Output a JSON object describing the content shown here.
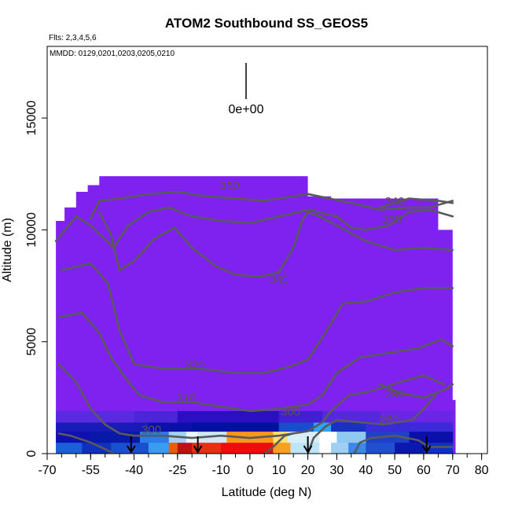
{
  "chart_data": {
    "type": "heatmap",
    "title": "ATOM2 Southbound SS_GEOS5",
    "subtitle_flts": "Flts: 2,3,4,5,6",
    "subtitle_mmdd": "MMDD: 0129,0201,0203,0205,0210",
    "xlabel": "Latitude (deg N)",
    "ylabel": "Altitude (m)",
    "xlim": [
      -70,
      82
    ],
    "ylim": [
      0,
      18200
    ],
    "x_ticks": [
      -70,
      -55,
      -40,
      -25,
      -10,
      0,
      10,
      20,
      30,
      40,
      50,
      60,
      70,
      80
    ],
    "x_tick_labels": [
      "-70",
      "-55",
      "-40",
      "-25",
      "-10",
      "0",
      "10",
      "20",
      "30",
      "40",
      "50",
      "60",
      "70",
      "80"
    ],
    "y_ticks": [
      0,
      5000,
      10000,
      15000
    ],
    "y_tick_labels": [
      "0",
      "5000",
      "10000",
      "15000"
    ],
    "legend_label": "0e+00",
    "background_color": "#7f22f0",
    "flight_arrows_lat": [
      -41,
      -18,
      20,
      61
    ],
    "lower_bands": [
      {
        "y0": 0,
        "y1": 500,
        "segments": [
          {
            "lat0": -67,
            "lat1": -58,
            "color": "#1b60d8"
          },
          {
            "lat0": -58,
            "lat1": -48,
            "color": "#1030c0"
          },
          {
            "lat0": -48,
            "lat1": -35,
            "color": "#1a50d0"
          },
          {
            "lat0": -35,
            "lat1": -28,
            "color": "#3a9cf0"
          },
          {
            "lat0": -28,
            "lat1": -25,
            "color": "#e06010"
          },
          {
            "lat0": -25,
            "lat1": -20,
            "color": "#c01010"
          },
          {
            "lat0": -20,
            "lat1": -10,
            "color": "#e83010"
          },
          {
            "lat0": -10,
            "lat1": 8,
            "color": "#ee0d0d"
          },
          {
            "lat0": 8,
            "lat1": 14,
            "color": "#f8a020"
          },
          {
            "lat0": 14,
            "lat1": 24,
            "color": "#bfe4f8"
          },
          {
            "lat0": 24,
            "lat1": 28,
            "color": "#ffffff"
          },
          {
            "lat0": 28,
            "lat1": 34,
            "color": "#9fd0f4"
          },
          {
            "lat0": 34,
            "lat1": 40,
            "color": "#3a88e8"
          },
          {
            "lat0": 40,
            "lat1": 50,
            "color": "#2050d0"
          },
          {
            "lat0": 50,
            "lat1": 60,
            "color": "#0a18b0"
          },
          {
            "lat0": 60,
            "lat1": 70,
            "color": "#1030c0"
          }
        ]
      },
      {
        "y0": 500,
        "y1": 1000,
        "segments": [
          {
            "lat0": -67,
            "lat1": -55,
            "color": "#1010b0"
          },
          {
            "lat0": -55,
            "lat1": -38,
            "color": "#0818a8"
          },
          {
            "lat0": -38,
            "lat1": -28,
            "color": "#2a7ce8"
          },
          {
            "lat0": -28,
            "lat1": -22,
            "color": "#9fd2f4"
          },
          {
            "lat0": -22,
            "lat1": -18,
            "color": "#e8f4fc"
          },
          {
            "lat0": -18,
            "lat1": -8,
            "color": "#cfe8f8"
          },
          {
            "lat0": -8,
            "lat1": 8,
            "color": "#f89818"
          },
          {
            "lat0": 8,
            "lat1": 13,
            "color": "#ffe070"
          },
          {
            "lat0": 13,
            "lat1": 24,
            "color": "#d8eefa"
          },
          {
            "lat0": 24,
            "lat1": 30,
            "color": "#ffffff"
          },
          {
            "lat0": 30,
            "lat1": 40,
            "color": "#8fc8f0"
          },
          {
            "lat0": 40,
            "lat1": 55,
            "color": "#2040c8"
          },
          {
            "lat0": 55,
            "lat1": 70,
            "color": "#0a10a8"
          }
        ]
      },
      {
        "y0": 1000,
        "y1": 1400,
        "segments": [
          {
            "lat0": -67,
            "lat1": -35,
            "color": "#1a1ab8"
          },
          {
            "lat0": -35,
            "lat1": -20,
            "color": "#0a10a8"
          },
          {
            "lat0": -20,
            "lat1": 10,
            "color": "#0010a0"
          },
          {
            "lat0": 10,
            "lat1": 22,
            "color": "#1a4cd0"
          },
          {
            "lat0": 22,
            "lat1": 28,
            "color": "#2aa6f4"
          },
          {
            "lat0": 28,
            "lat1": 40,
            "color": "#1a30c0"
          },
          {
            "lat0": 40,
            "lat1": 70,
            "color": "#3a2ad8"
          }
        ]
      },
      {
        "y0": 1400,
        "y1": 1900,
        "segments": [
          {
            "lat0": -67,
            "lat1": -40,
            "color": "#5a2ae0"
          },
          {
            "lat0": -40,
            "lat1": -25,
            "color": "#4a26d8"
          },
          {
            "lat0": -25,
            "lat1": 10,
            "color": "#2a10c0"
          },
          {
            "lat0": 10,
            "lat1": 25,
            "color": "#4020d0"
          },
          {
            "lat0": 25,
            "lat1": 45,
            "color": "#5528dc"
          },
          {
            "lat0": 45,
            "lat1": 70,
            "color": "#6a26e4"
          }
        ]
      }
    ],
    "contours": [
      {
        "label": "350",
        "label_lat": -7,
        "label_alt": 11800,
        "points": [
          [
            -55,
            10500
          ],
          [
            -52,
            11300
          ],
          [
            -45,
            11400
          ],
          [
            -35,
            11600
          ],
          [
            -25,
            11700
          ],
          [
            -15,
            11500
          ],
          [
            -5,
            11400
          ],
          [
            5,
            11300
          ],
          [
            20,
            11600
          ],
          [
            35,
            11200
          ],
          [
            45,
            10900
          ],
          [
            55,
            11000
          ],
          [
            62,
            11000
          ],
          [
            70,
            11300
          ]
        ]
      },
      {
        "label": "330",
        "label_lat": 49,
        "label_alt": 10300,
        "points": [
          [
            -67,
            9500
          ],
          [
            -60,
            10600
          ],
          [
            -55,
            10200
          ],
          [
            -47,
            9200
          ],
          [
            -42,
            10200
          ],
          [
            -35,
            10800
          ],
          [
            -28,
            11000
          ],
          [
            -20,
            10600
          ],
          [
            -10,
            10400
          ],
          [
            0,
            10300
          ],
          [
            10,
            10600
          ],
          [
            20,
            10900
          ],
          [
            30,
            10600
          ],
          [
            35,
            10100
          ],
          [
            40,
            10000
          ],
          [
            48,
            10200
          ],
          [
            55,
            10800
          ],
          [
            62,
            10900
          ],
          [
            70,
            10600
          ]
        ]
      },
      {
        "label": "340",
        "label_lat": 50,
        "label_alt": 11100,
        "points": [
          [
            45,
            11000
          ],
          [
            55,
            11400
          ],
          [
            65,
            11300
          ],
          [
            70,
            11200
          ]
        ]
      },
      {
        "label": "340",
        "label_lat": 10,
        "label_alt": 7600,
        "points": [
          [
            -52,
            10800
          ],
          [
            -48,
            9800
          ],
          [
            -45,
            8200
          ],
          [
            -40,
            8600
          ],
          [
            -33,
            9600
          ],
          [
            -26,
            10100
          ],
          [
            -20,
            9200
          ],
          [
            -12,
            8400
          ],
          [
            -5,
            8000
          ],
          [
            3,
            7900
          ],
          [
            10,
            8100
          ],
          [
            15,
            9200
          ],
          [
            18,
            10400
          ],
          [
            20,
            10800
          ],
          [
            24,
            10600
          ],
          [
            30,
            10200
          ],
          [
            40,
            9500
          ],
          [
            50,
            9100
          ],
          [
            60,
            9200
          ],
          [
            70,
            9100
          ]
        ]
      },
      {
        "label": "320",
        "label_lat": -19,
        "label_alt": 3800,
        "points": [
          [
            -65,
            8200
          ],
          [
            -55,
            8500
          ],
          [
            -49,
            7600
          ],
          [
            -45,
            5500
          ],
          [
            -40,
            4000
          ],
          [
            -30,
            3800
          ],
          [
            -18,
            3800
          ],
          [
            -5,
            3600
          ],
          [
            5,
            3600
          ],
          [
            14,
            3900
          ],
          [
            20,
            4200
          ],
          [
            28,
            5800
          ],
          [
            32,
            6700
          ],
          [
            40,
            6800
          ],
          [
            50,
            7200
          ],
          [
            60,
            7400
          ],
          [
            70,
            7400
          ]
        ]
      },
      {
        "label": "310",
        "label_lat": -22,
        "label_alt": 2300,
        "points": [
          [
            -66,
            6100
          ],
          [
            -58,
            6300
          ],
          [
            -52,
            5400
          ],
          [
            -48,
            4300
          ],
          [
            -42,
            3200
          ],
          [
            -38,
            2600
          ],
          [
            -30,
            2300
          ],
          [
            -20,
            2300
          ],
          [
            -10,
            2100
          ],
          [
            0,
            1900
          ],
          [
            10,
            2000
          ],
          [
            20,
            2200
          ],
          [
            25,
            2600
          ],
          [
            30,
            3600
          ],
          [
            38,
            4300
          ],
          [
            48,
            4500
          ],
          [
            58,
            4700
          ],
          [
            66,
            5100
          ],
          [
            70,
            4800
          ]
        ]
      },
      {
        "label": "300",
        "label_lat": 14,
        "label_alt": 1700,
        "points": [
          [
            -66,
            4000
          ],
          [
            -60,
            3200
          ],
          [
            -55,
            2000
          ],
          [
            -50,
            1300
          ],
          [
            -45,
            900
          ],
          [
            -40,
            800
          ],
          [
            -30,
            800
          ],
          [
            -20,
            700
          ],
          [
            -10,
            800
          ],
          [
            0,
            700
          ],
          [
            10,
            800
          ],
          [
            20,
            1000
          ],
          [
            25,
            1400
          ],
          [
            28,
            1900
          ],
          [
            34,
            2600
          ],
          [
            42,
            2800
          ],
          [
            52,
            3200
          ],
          [
            60,
            3500
          ],
          [
            67,
            3100
          ]
        ]
      },
      {
        "label": "290",
        "label_lat": 50,
        "label_alt": 2500,
        "points": [
          [
            45,
            3100
          ],
          [
            52,
            2700
          ],
          [
            60,
            2500
          ],
          [
            68,
            2900
          ],
          [
            70,
            3100
          ]
        ]
      },
      {
        "label": "280",
        "label_lat": 48,
        "label_alt": 1350,
        "points": [
          [
            20,
            0
          ],
          [
            22,
            700
          ],
          [
            26,
            1200
          ],
          [
            30,
            1500
          ],
          [
            38,
            1400
          ],
          [
            46,
            1300
          ],
          [
            56,
            1500
          ],
          [
            60,
            2000
          ],
          [
            64,
            2600
          ]
        ]
      },
      {
        "label": "300",
        "label_lat": -34,
        "label_alt": 900,
        "points": [
          [
            -66,
            900
          ],
          [
            -62,
            800
          ],
          [
            -55,
            500
          ],
          [
            -50,
            200
          ],
          [
            -47,
            0
          ]
        ]
      },
      {
        "label": "",
        "label_lat": 0,
        "label_alt": 0,
        "points": [
          [
            5,
            0
          ],
          [
            8,
            300
          ],
          [
            12,
            800
          ],
          [
            15,
            900
          ]
        ]
      },
      {
        "label": "",
        "label_lat": 0,
        "label_alt": 0,
        "points": [
          [
            36,
            0
          ],
          [
            38,
            500
          ],
          [
            42,
            700
          ],
          [
            50,
            800
          ],
          [
            58,
            600
          ],
          [
            62,
            300
          ],
          [
            70,
            300
          ]
        ]
      }
    ]
  }
}
